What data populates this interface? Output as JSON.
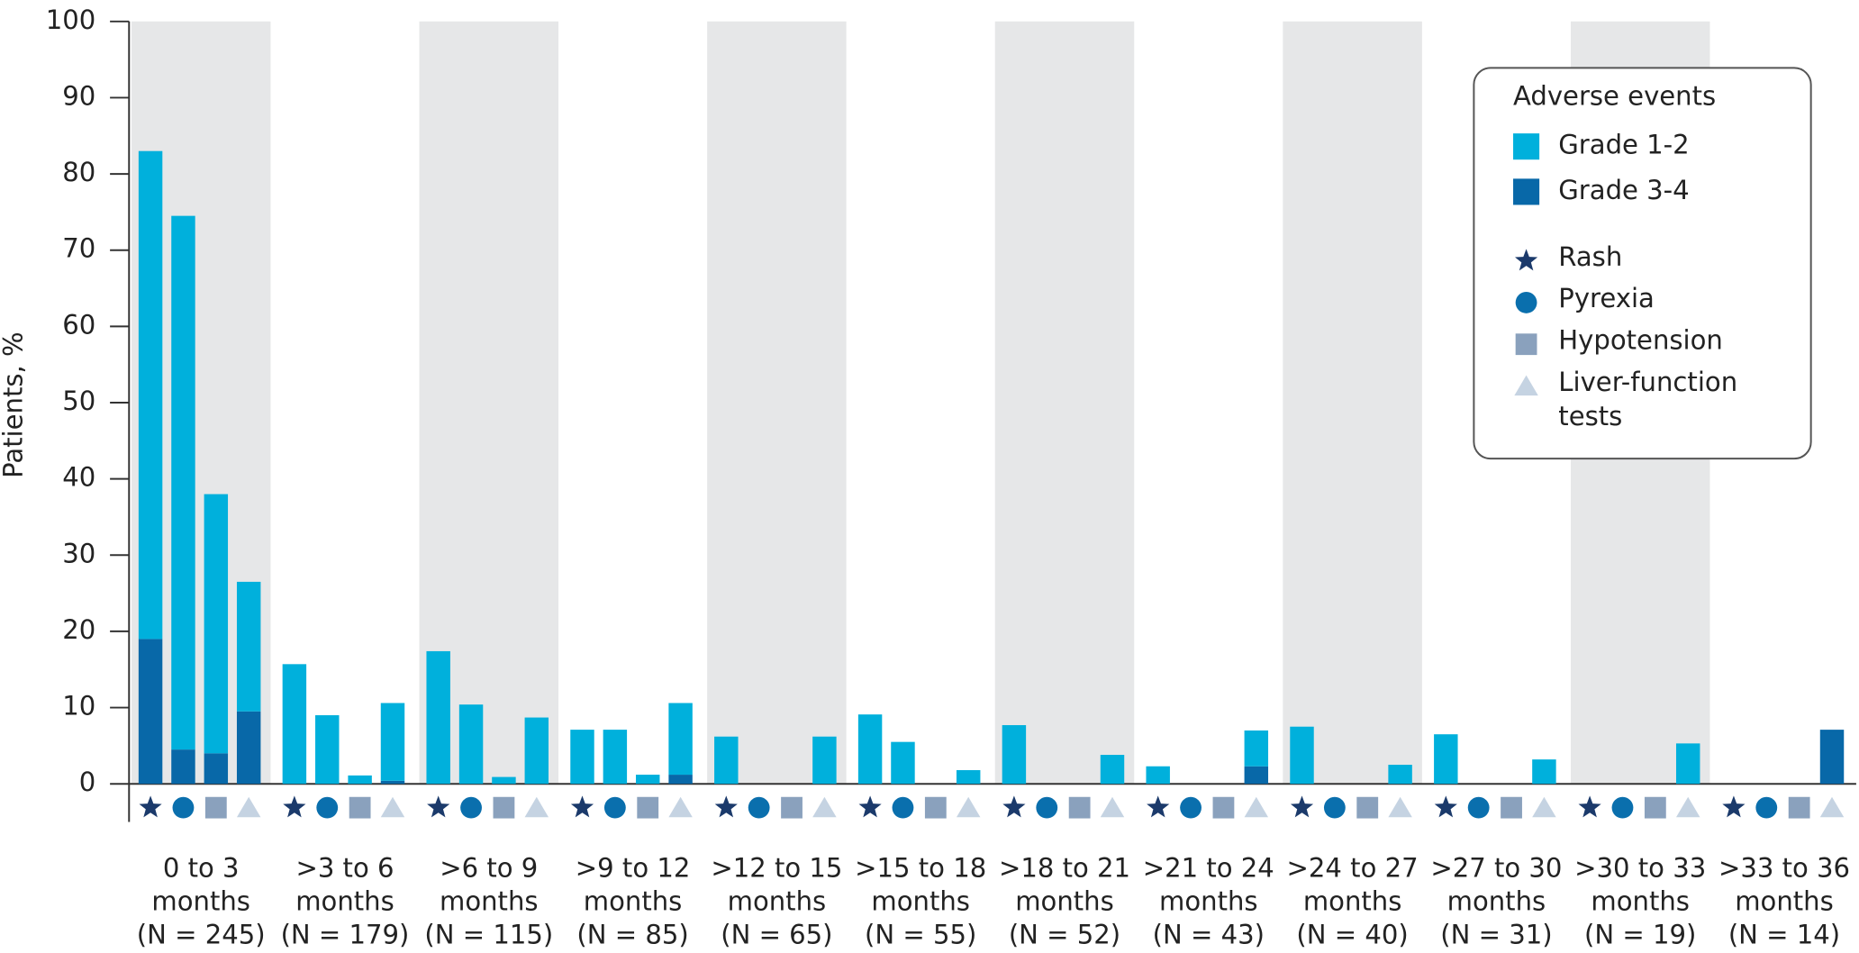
{
  "chart_data": {
    "type": "stacked-bar",
    "y_label": "Patients, %",
    "ylim": [
      0,
      100
    ],
    "yticks": [
      0,
      10,
      20,
      30,
      40,
      50,
      60,
      70,
      80,
      90,
      100
    ],
    "categories": [
      [
        "0 to 3",
        "months",
        "(N = 245)"
      ],
      [
        ">3 to 6",
        "months",
        "(N = 179)"
      ],
      [
        ">6 to 9",
        "months",
        "(N = 115)"
      ],
      [
        ">9 to 12",
        "months",
        "(N = 85)"
      ],
      [
        ">12 to 15",
        "months",
        "(N = 65)"
      ],
      [
        ">15 to 18",
        "months",
        "(N = 55)"
      ],
      [
        ">18 to 21",
        "months",
        "(N = 52)"
      ],
      [
        ">21 to 24",
        "months",
        "(N = 43)"
      ],
      [
        ">24 to 27",
        "months",
        "(N = 40)"
      ],
      [
        ">27 to 30",
        "months",
        "(N = 31)"
      ],
      [
        ">30 to 33",
        "months",
        "(N = 19)"
      ],
      [
        ">33 to 36",
        "months",
        "(N = 14)"
      ]
    ],
    "legend_title": "Adverse events",
    "events": [
      {
        "name": "Rash",
        "shape": "star",
        "color": "#1b3a6b"
      },
      {
        "name": "Pyrexia",
        "shape": "circle",
        "color": "#0a6fad"
      },
      {
        "name": "Hypotension",
        "shape": "square",
        "color": "#8aa1bd"
      },
      {
        "name": "Liver-function tests",
        "shape": "triangle",
        "color": "#c5d3e2"
      }
    ],
    "series": [
      {
        "name": "Grade 3-4",
        "color": "#0868a8",
        "values": [
          [
            19,
            4.5,
            4,
            9.5
          ],
          [
            0,
            0,
            0,
            0.4
          ],
          [
            0,
            0,
            0,
            0
          ],
          [
            0,
            0,
            0,
            1.2
          ],
          [
            0,
            0,
            0,
            0
          ],
          [
            0,
            0,
            0,
            0
          ],
          [
            0,
            0,
            0,
            0
          ],
          [
            0,
            0,
            0,
            2.3
          ],
          [
            0,
            0,
            0,
            0
          ],
          [
            0,
            0,
            0,
            0
          ],
          [
            0,
            0,
            0,
            0
          ],
          [
            0,
            0,
            0,
            7.1
          ]
        ]
      },
      {
        "name": "Grade 1-2",
        "color": "#00b0dc",
        "values": [
          [
            64,
            70,
            34,
            17
          ],
          [
            15.7,
            9,
            1.1,
            10.2
          ],
          [
            17.4,
            10.4,
            0.9,
            8.7
          ],
          [
            7.1,
            7.1,
            1.2,
            9.4
          ],
          [
            6.2,
            0,
            0,
            6.2
          ],
          [
            9.1,
            5.5,
            0,
            1.8
          ],
          [
            7.7,
            0,
            0,
            3.8
          ],
          [
            2.3,
            0,
            0,
            4.7
          ],
          [
            7.5,
            0,
            0,
            2.5
          ],
          [
            6.5,
            0,
            0,
            3.2
          ],
          [
            0,
            0,
            0,
            5.3
          ],
          [
            0,
            0,
            0,
            0
          ]
        ]
      }
    ],
    "band_color": "#e6e7e8"
  }
}
